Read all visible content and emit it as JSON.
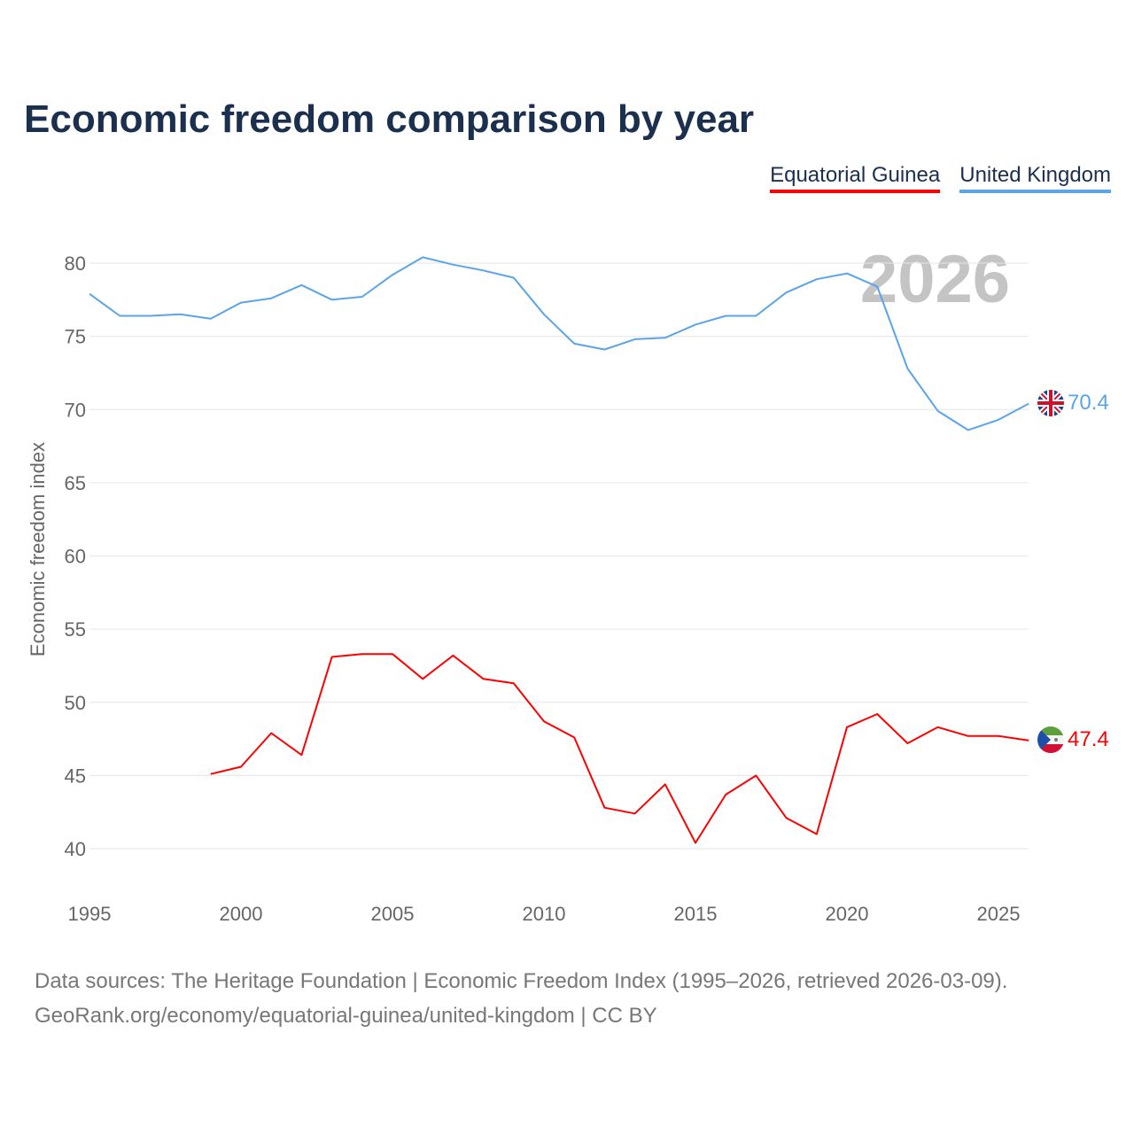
{
  "chart_data": {
    "type": "line",
    "title": "Economic freedom comparison by year",
    "xlabel": "",
    "ylabel": "Economic freedom index",
    "xlim": [
      1995,
      2026
    ],
    "ylim": [
      40,
      80
    ],
    "xticks": [
      1995,
      2000,
      2005,
      2010,
      2015,
      2020,
      2025
    ],
    "yticks": [
      40,
      45,
      50,
      55,
      60,
      65,
      70,
      75,
      80
    ],
    "grid": true,
    "legend_position": "top-right",
    "watermark_year": "2026",
    "series": [
      {
        "name": "Equatorial Guinea",
        "color": "#ff0000",
        "end_label": "47.4",
        "flag": "equatorial-guinea-flag",
        "x": [
          1999,
          2000,
          2001,
          2002,
          2003,
          2004,
          2005,
          2006,
          2007,
          2008,
          2009,
          2010,
          2011,
          2012,
          2013,
          2014,
          2015,
          2016,
          2017,
          2018,
          2019,
          2020,
          2021,
          2022,
          2023,
          2024,
          2025,
          2026
        ],
        "values": [
          45.1,
          45.6,
          47.9,
          46.4,
          53.1,
          53.3,
          53.3,
          51.6,
          53.2,
          51.6,
          51.3,
          48.7,
          47.6,
          42.8,
          42.4,
          44.4,
          40.4,
          43.7,
          45.0,
          42.1,
          41.0,
          48.3,
          49.2,
          47.2,
          48.3,
          47.7,
          47.7,
          47.4
        ]
      },
      {
        "name": "United Kingdom",
        "color": "#5ba4e8",
        "end_label": "70.4",
        "flag": "uk-flag",
        "x": [
          1995,
          1996,
          1997,
          1998,
          1999,
          2000,
          2001,
          2002,
          2003,
          2004,
          2005,
          2006,
          2007,
          2008,
          2009,
          2010,
          2011,
          2012,
          2013,
          2014,
          2015,
          2016,
          2017,
          2018,
          2019,
          2020,
          2021,
          2022,
          2023,
          2024,
          2025,
          2026
        ],
        "values": [
          77.9,
          76.4,
          76.4,
          76.5,
          76.2,
          77.3,
          77.6,
          78.5,
          77.5,
          77.7,
          79.2,
          80.4,
          79.9,
          79.5,
          79.0,
          76.5,
          74.5,
          74.1,
          74.8,
          74.9,
          75.8,
          76.4,
          76.4,
          78.0,
          78.9,
          79.3,
          78.4,
          72.8,
          69.9,
          68.6,
          69.3,
          70.4
        ]
      }
    ]
  },
  "footer": {
    "line1": "Data sources: The Heritage Foundation | Economic Freedom Index (1995–2026, retrieved 2026-03-09).",
    "line2": "GeoRank.org/economy/equatorial-guinea/united-kingdom | CC BY"
  }
}
